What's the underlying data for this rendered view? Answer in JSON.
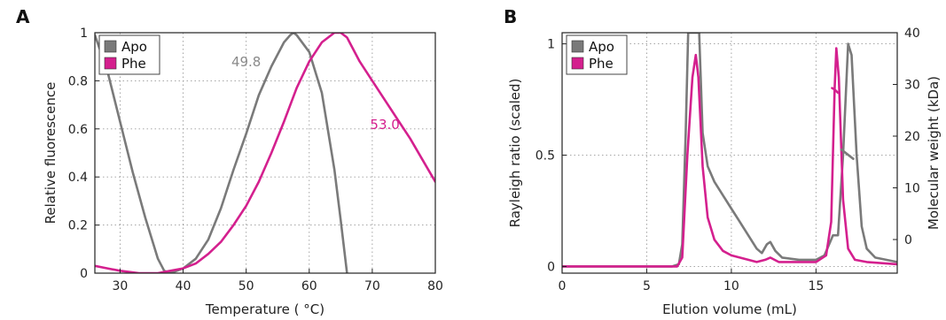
{
  "chart_data": [
    {
      "type": "line",
      "panel_label": "A",
      "xlabel": "Temperature ( °C)",
      "ylabel": "Relative fluorescence",
      "xlim": [
        26,
        80
      ],
      "ylim": [
        0,
        1
      ],
      "xticks": [
        "30",
        "40",
        "50",
        "60",
        "70",
        "80"
      ],
      "yticks": [
        "0",
        "0.2",
        "0.4",
        "0.6",
        "0.8",
        "1"
      ],
      "xtick_values": [
        30,
        40,
        50,
        60,
        70,
        80
      ],
      "ytick_values": [
        0,
        0.2,
        0.4,
        0.6,
        0.8,
        1
      ],
      "grid": true,
      "legend": {
        "placement": "top-left",
        "entries": [
          "Apo",
          "Phe"
        ]
      },
      "series": [
        {
          "name": "Apo",
          "color": "#7a7a7a",
          "points": [
            [
              26,
              0.99
            ],
            [
              28,
              0.84
            ],
            [
              30,
              0.63
            ],
            [
              32,
              0.42
            ],
            [
              34,
              0.23
            ],
            [
              36,
              0.06
            ],
            [
              37,
              0.01
            ],
            [
              38,
              0.0
            ],
            [
              40,
              0.02
            ],
            [
              42,
              0.06
            ],
            [
              44,
              0.14
            ],
            [
              46,
              0.27
            ],
            [
              48,
              0.43
            ],
            [
              50,
              0.58
            ],
            [
              52,
              0.74
            ],
            [
              54,
              0.86
            ],
            [
              56,
              0.96
            ],
            [
              57,
              0.99
            ],
            [
              57.5,
              1.0
            ],
            [
              58,
              0.99
            ],
            [
              60,
              0.92
            ],
            [
              62,
              0.75
            ],
            [
              64,
              0.43
            ],
            [
              65,
              0.22
            ],
            [
              66,
              0.0
            ]
          ]
        },
        {
          "name": "Phe",
          "color": "#d4208e",
          "points": [
            [
              26,
              0.03
            ],
            [
              28,
              0.02
            ],
            [
              30,
              0.01
            ],
            [
              33,
              0.0
            ],
            [
              36,
              0.0
            ],
            [
              38,
              0.01
            ],
            [
              40,
              0.02
            ],
            [
              42,
              0.04
            ],
            [
              44,
              0.08
            ],
            [
              46,
              0.13
            ],
            [
              48,
              0.2
            ],
            [
              50,
              0.28
            ],
            [
              52,
              0.38
            ],
            [
              54,
              0.5
            ],
            [
              56,
              0.63
            ],
            [
              58,
              0.77
            ],
            [
              60,
              0.88
            ],
            [
              62,
              0.96
            ],
            [
              64,
              1.0
            ],
            [
              65,
              1.0
            ],
            [
              66,
              0.98
            ],
            [
              68,
              0.88
            ],
            [
              70,
              0.8
            ],
            [
              72,
              0.72
            ],
            [
              74,
              0.64
            ],
            [
              76,
              0.56
            ],
            [
              78,
              0.47
            ],
            [
              80,
              0.38
            ]
          ]
        }
      ],
      "annotations": [
        {
          "text": "49.8",
          "x": 50,
          "y": 0.86,
          "color": "#8a8a8a"
        },
        {
          "text": "53.0",
          "x": 72,
          "y": 0.6,
          "color": "#d4208e"
        }
      ]
    },
    {
      "type": "line",
      "panel_label": "B",
      "xlabel": "Elution volume (mL)",
      "ylabel": "Rayleigh ratio (scaled)",
      "y2label": "Molecular weight (kDa)",
      "xlim": [
        0,
        19.8
      ],
      "ylim": [
        -0.03,
        1.05
      ],
      "y2lim": [
        -6.5,
        40
      ],
      "xticks": [
        "0",
        "5",
        "10",
        "15"
      ],
      "xtick_values": [
        0,
        5,
        10,
        15
      ],
      "yticks": [
        "0",
        "0.5",
        "1"
      ],
      "ytick_values": [
        0,
        0.5,
        1
      ],
      "y2ticks": [
        "0",
        "10",
        "20",
        "30",
        "40"
      ],
      "y2tick_values": [
        0,
        10,
        20,
        30,
        40
      ],
      "grid": true,
      "legend": {
        "placement": "top-left",
        "entries": [
          "Apo",
          "Phe"
        ]
      },
      "series": [
        {
          "name": "Apo",
          "color": "#7a7a7a",
          "axis": "left",
          "points": [
            [
              0,
              0.0
            ],
            [
              6.5,
              0.0
            ],
            [
              6.9,
              0.01
            ],
            [
              7.1,
              0.1
            ],
            [
              7.3,
              0.6
            ],
            [
              7.45,
              1.05
            ],
            [
              8.1,
              1.05
            ],
            [
              8.3,
              0.6
            ],
            [
              8.6,
              0.45
            ],
            [
              9,
              0.38
            ],
            [
              9.5,
              0.32
            ],
            [
              10,
              0.26
            ],
            [
              10.5,
              0.2
            ],
            [
              11,
              0.14
            ],
            [
              11.5,
              0.08
            ],
            [
              11.8,
              0.06
            ],
            [
              12.1,
              0.1
            ],
            [
              12.3,
              0.11
            ],
            [
              12.6,
              0.07
            ],
            [
              13,
              0.04
            ],
            [
              14,
              0.03
            ],
            [
              15,
              0.03
            ],
            [
              15.5,
              0.05
            ],
            [
              16,
              0.14
            ],
            [
              16.3,
              0.14
            ],
            [
              16.6,
              0.5
            ],
            [
              16.9,
              1.0
            ],
            [
              17.1,
              0.95
            ],
            [
              17.4,
              0.5
            ],
            [
              17.7,
              0.18
            ],
            [
              18,
              0.08
            ],
            [
              18.5,
              0.04
            ],
            [
              19.8,
              0.02
            ]
          ]
        },
        {
          "name": "Phe",
          "color": "#d4208e",
          "axis": "left",
          "points": [
            [
              0,
              0.0
            ],
            [
              6.8,
              0.0
            ],
            [
              7.1,
              0.04
            ],
            [
              7.4,
              0.5
            ],
            [
              7.7,
              0.85
            ],
            [
              7.9,
              0.95
            ],
            [
              8.05,
              0.85
            ],
            [
              8.3,
              0.45
            ],
            [
              8.6,
              0.22
            ],
            [
              9,
              0.12
            ],
            [
              9.5,
              0.07
            ],
            [
              10,
              0.05
            ],
            [
              11,
              0.03
            ],
            [
              11.5,
              0.02
            ],
            [
              12,
              0.03
            ],
            [
              12.3,
              0.04
            ],
            [
              12.8,
              0.02
            ],
            [
              13.5,
              0.02
            ],
            [
              15,
              0.02
            ],
            [
              15.6,
              0.05
            ],
            [
              15.9,
              0.2
            ],
            [
              16.1,
              0.8
            ],
            [
              16.2,
              0.98
            ],
            [
              16.35,
              0.85
            ],
            [
              16.6,
              0.3
            ],
            [
              16.9,
              0.08
            ],
            [
              17.3,
              0.03
            ],
            [
              18,
              0.02
            ],
            [
              19.8,
              0.01
            ]
          ]
        },
        {
          "name": "Apo",
          "color": "#7a7a7a",
          "axis": "right",
          "points": [
            [
              16.5,
              17.4
            ],
            [
              17.2,
              15.6
            ]
          ]
        },
        {
          "name": "Phe",
          "color": "#d4208e",
          "axis": "right",
          "points": [
            [
              15.95,
              29.3
            ],
            [
              16.1,
              29.0
            ],
            [
              16.3,
              28.4
            ]
          ]
        }
      ]
    }
  ]
}
